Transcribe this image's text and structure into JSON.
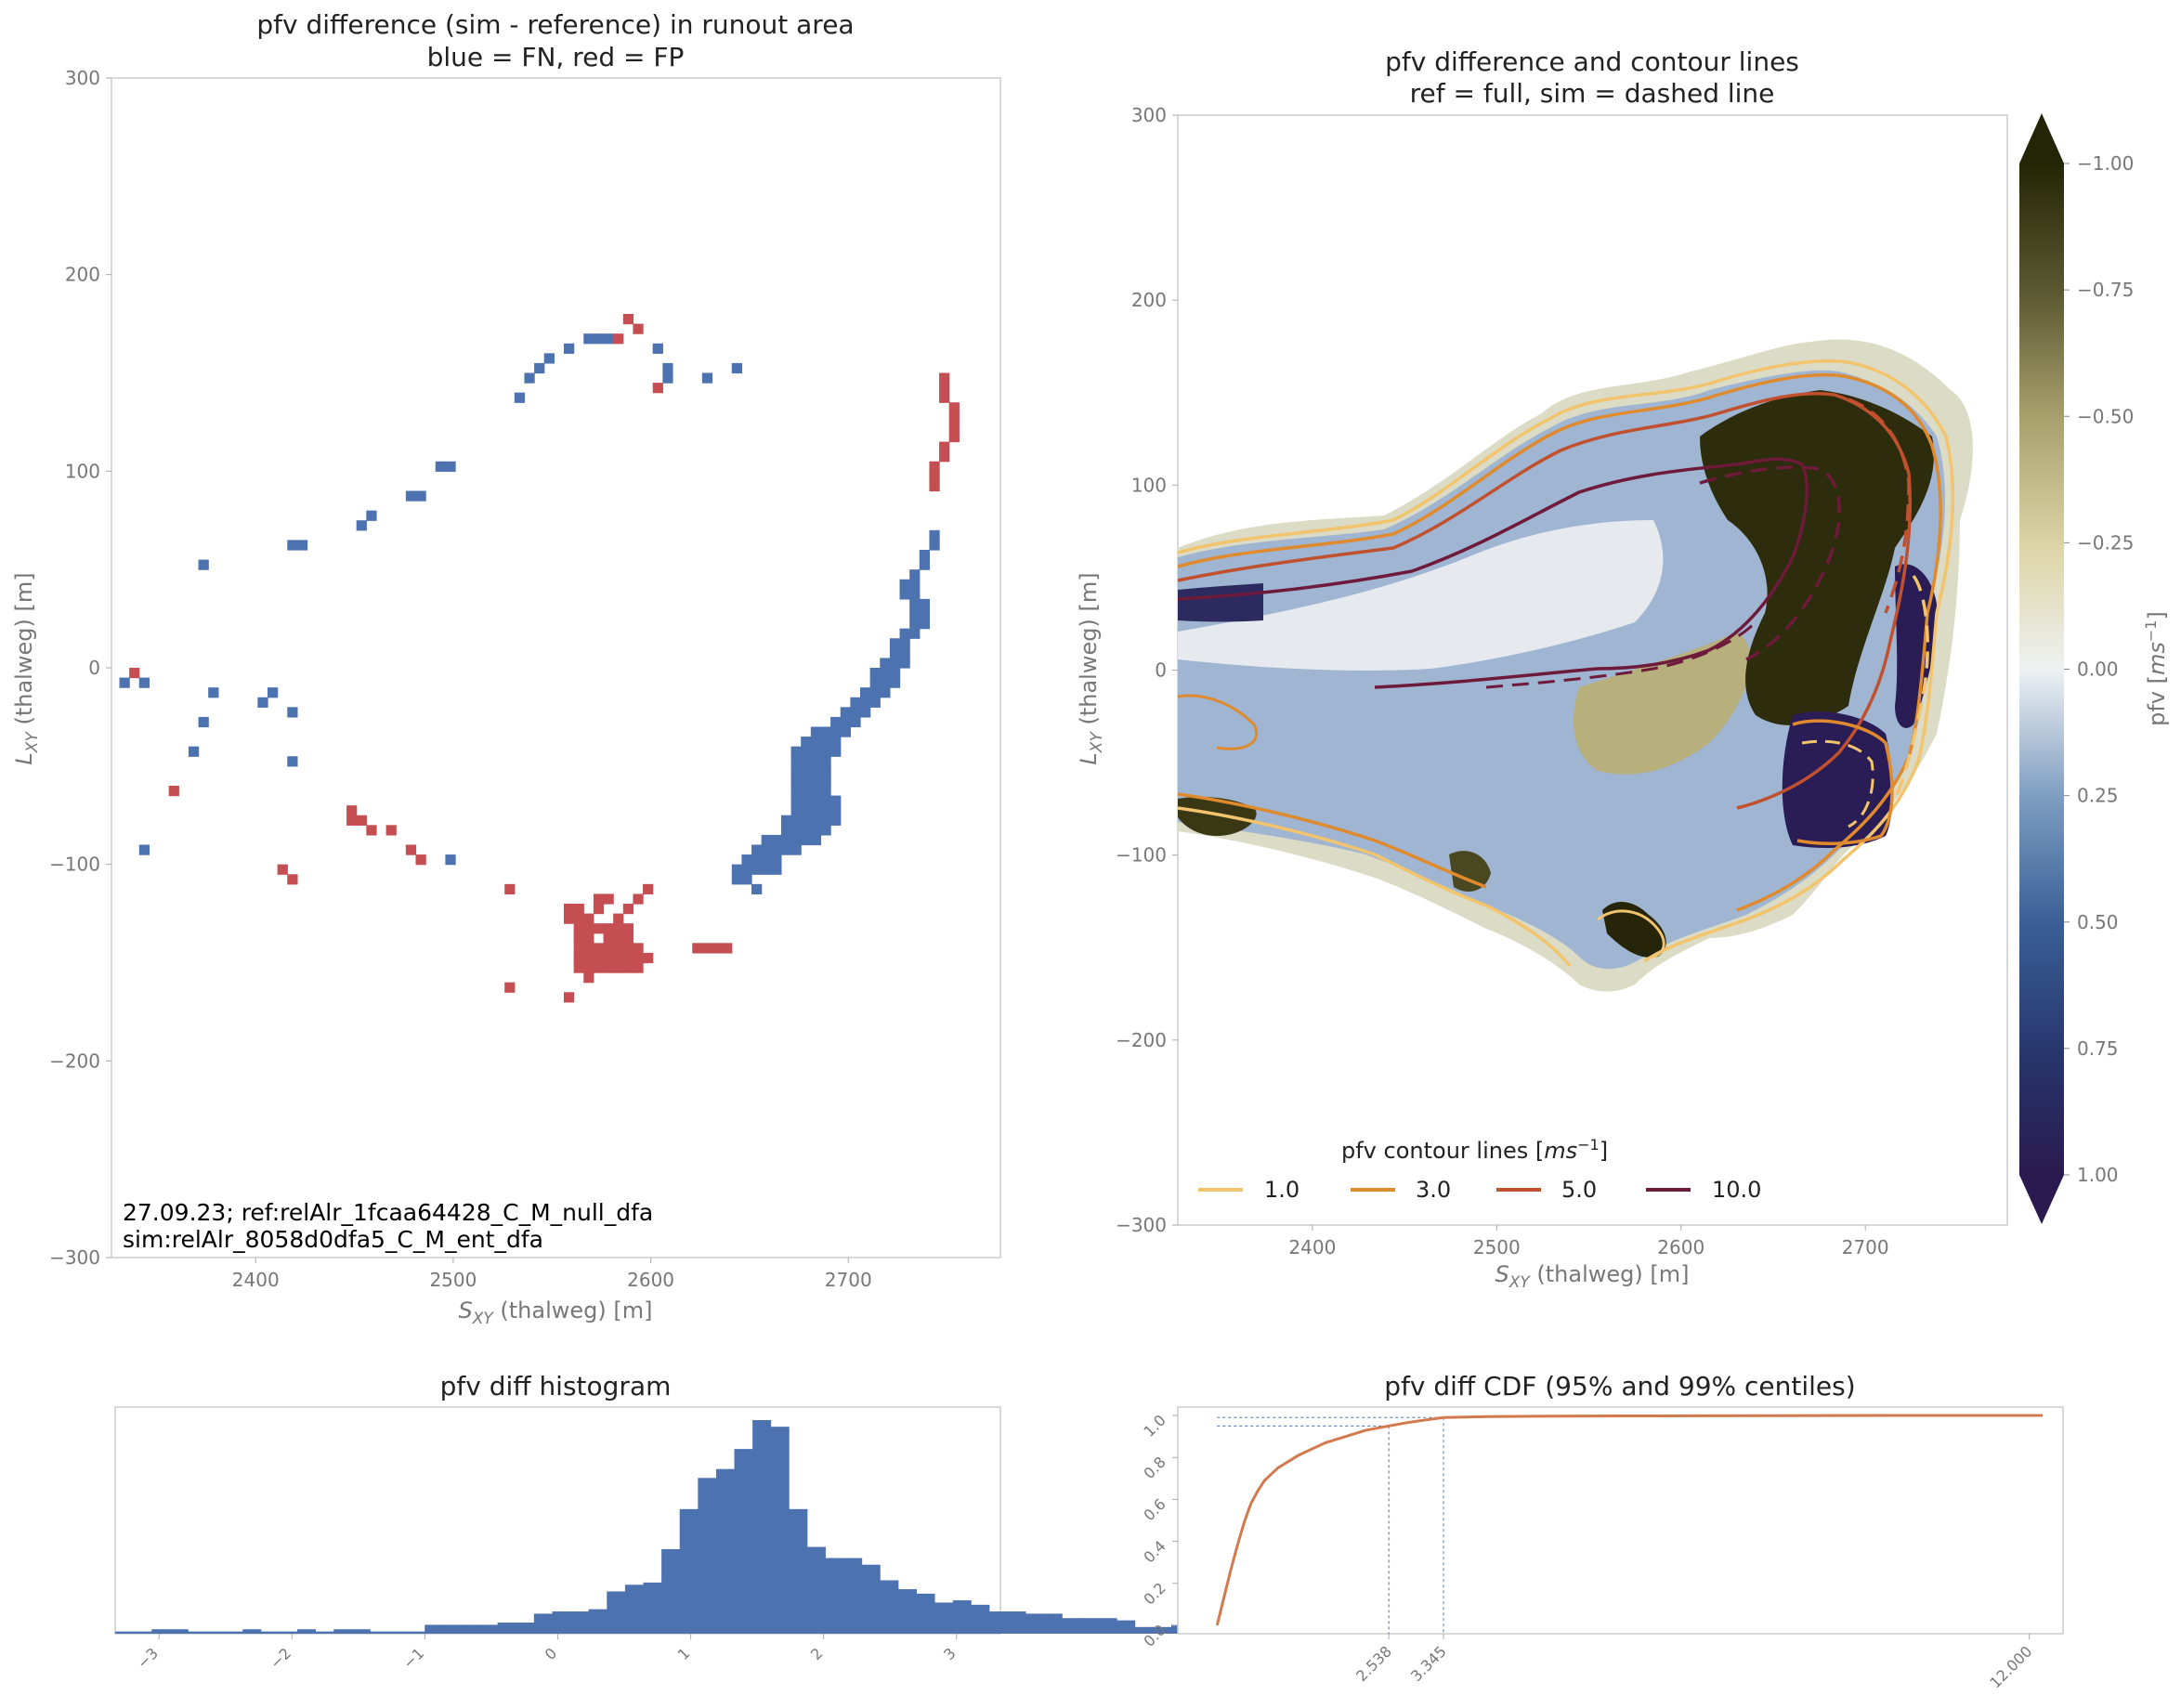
{
  "panels": {
    "diff_map": {
      "title_line1": "pfv difference (sim - reference) in runout area",
      "title_line2": "blue = FN, red = FP",
      "xlabel_var": "S",
      "xlabel_sub": "XY",
      "xlabel_rest": " (thalweg) [m]",
      "ylabel_var": "L",
      "ylabel_sub": "XY",
      "ylabel_rest": " (thalweg) [m]",
      "annotation_line1": "27.09.23; ref:relAlr_1fcaa64428_C_M_null_dfa",
      "annotation_line2": "sim:relAlr_8058d0dfa5_C_M_ent_dfa",
      "xticks": [
        "2400",
        "2500",
        "2600",
        "2700"
      ],
      "yticks": [
        "300",
        "200",
        "100",
        "0",
        "−100",
        "−200",
        "−300"
      ]
    },
    "contour_map": {
      "title_line1": "pfv difference and contour lines",
      "title_line2": "ref = full, sim = dashed line",
      "xlabel_var": "S",
      "xlabel_sub": "XY",
      "xlabel_rest": " (thalweg) [m]",
      "ylabel_var": "L",
      "ylabel_sub": "XY",
      "ylabel_rest": " (thalweg) [m]",
      "xticks": [
        "2400",
        "2500",
        "2600",
        "2700"
      ],
      "yticks": [
        "300",
        "200",
        "100",
        "0",
        "−100",
        "−200",
        "−300"
      ],
      "legend_title_prefix": "pfv contour lines [",
      "legend_title_unit": "ms",
      "legend_title_exp": "−1",
      "legend_title_suffix": "]",
      "legend": [
        {
          "label": "1.0",
          "color": "#f2c46d"
        },
        {
          "label": "3.0",
          "color": "#e08a2e"
        },
        {
          "label": "5.0",
          "color": "#c1502f"
        },
        {
          "label": "10.0",
          "color": "#6e1a3a"
        }
      ],
      "colorbar_label_prefix": "pfv [",
      "colorbar_label_unit": "ms",
      "colorbar_label_exp": "−1",
      "colorbar_label_suffix": "]",
      "colorbar_ticks": [
        "1.00",
        "0.75",
        "0.50",
        "0.25",
        "0.00",
        "−0.25",
        "−0.50",
        "−0.75",
        "−1.00"
      ]
    },
    "histogram": {
      "title": "pfv diff histogram",
      "xticks": [
        "−3",
        "−2",
        "−1",
        "0",
        "1",
        "2",
        "3"
      ]
    },
    "cdf": {
      "title": "pfv diff CDF (95% and 99% centiles)",
      "yticks": [
        "0.0",
        "0.2",
        "0.4",
        "0.6",
        "0.8",
        "1.0"
      ],
      "xticks": [
        "2.538",
        "3.345",
        "12.000"
      ]
    }
  },
  "chart_data": [
    {
      "type": "heatmap",
      "name": "diff_map",
      "title": "pfv difference (sim - reference) in runout area\nblue = FN, red = FP",
      "xlabel": "S_XY (thalweg) [m]",
      "ylabel": "L_XY (thalweg) [m]",
      "xlim": [
        2327,
        2777
      ],
      "ylim": [
        -300,
        300
      ],
      "cell_size_m": 5,
      "colors": {
        "FN": "#4c72b0",
        "FP": "#c44e52"
      },
      "fn_cells": [
        [
          2566,
          165
        ],
        [
          2571,
          165
        ],
        [
          2576,
          165
        ],
        [
          2556,
          160
        ],
        [
          2546,
          155
        ],
        [
          2541,
          150
        ],
        [
          2536,
          145
        ],
        [
          2531,
          135
        ],
        [
          2601,
          160
        ],
        [
          2606,
          150
        ],
        [
          2606,
          145
        ],
        [
          2626,
          145
        ],
        [
          2641,
          150
        ],
        [
          2496,
          100
        ],
        [
          2491,
          100
        ],
        [
          2481,
          85
        ],
        [
          2476,
          85
        ],
        [
          2456,
          75
        ],
        [
          2451,
          70
        ],
        [
          2421,
          60
        ],
        [
          2416,
          60
        ],
        [
          2371,
          50
        ],
        [
          2331,
          -10
        ],
        [
          2341,
          -10
        ],
        [
          2376,
          -15
        ],
        [
          2406,
          -15
        ],
        [
          2401,
          -20
        ],
        [
          2416,
          -25
        ],
        [
          2371,
          -30
        ],
        [
          2366,
          -45
        ],
        [
          2416,
          -50
        ],
        [
          2341,
          -95
        ],
        [
          2496,
          -100
        ],
        [
          2651,
          -115
        ],
        [
          2661,
          -105
        ],
        [
          2741,
          65
        ],
        [
          2741,
          60
        ],
        [
          2736,
          55
        ],
        [
          2736,
          50
        ],
        [
          2731,
          45
        ],
        [
          2726,
          40
        ],
        [
          2731,
          40
        ],
        [
          2726,
          35
        ],
        [
          2731,
          35
        ],
        [
          2731,
          30
        ],
        [
          2736,
          30
        ],
        [
          2731,
          25
        ],
        [
          2736,
          25
        ],
        [
          2731,
          20
        ],
        [
          2736,
          20
        ],
        [
          2731,
          15
        ],
        [
          2726,
          15
        ],
        [
          2726,
          10
        ],
        [
          2721,
          10
        ],
        [
          2726,
          5
        ],
        [
          2721,
          5
        ],
        [
          2726,
          0
        ],
        [
          2721,
          0
        ],
        [
          2716,
          0
        ],
        [
          2721,
          -5
        ],
        [
          2716,
          -5
        ],
        [
          2711,
          -5
        ],
        [
          2721,
          -10
        ],
        [
          2716,
          -10
        ],
        [
          2711,
          -10
        ],
        [
          2706,
          -15
        ],
        [
          2711,
          -15
        ],
        [
          2716,
          -15
        ],
        [
          2701,
          -20
        ],
        [
          2706,
          -20
        ],
        [
          2711,
          -20
        ],
        [
          2696,
          -25
        ],
        [
          2701,
          -25
        ],
        [
          2706,
          -25
        ],
        [
          2691,
          -30
        ],
        [
          2696,
          -30
        ],
        [
          2701,
          -30
        ],
        [
          2681,
          -35
        ],
        [
          2686,
          -35
        ],
        [
          2691,
          -35
        ],
        [
          2696,
          -35
        ],
        [
          2676,
          -40
        ],
        [
          2681,
          -40
        ],
        [
          2686,
          -40
        ],
        [
          2691,
          -40
        ],
        [
          2671,
          -45
        ],
        [
          2676,
          -45
        ],
        [
          2681,
          -45
        ],
        [
          2686,
          -45
        ],
        [
          2691,
          -45
        ],
        [
          2671,
          -50
        ],
        [
          2676,
          -50
        ],
        [
          2681,
          -50
        ],
        [
          2686,
          -50
        ],
        [
          2671,
          -55
        ],
        [
          2676,
          -55
        ],
        [
          2681,
          -55
        ],
        [
          2686,
          -55
        ],
        [
          2671,
          -60
        ],
        [
          2676,
          -60
        ],
        [
          2681,
          -60
        ],
        [
          2686,
          -60
        ],
        [
          2671,
          -65
        ],
        [
          2676,
          -65
        ],
        [
          2681,
          -65
        ],
        [
          2686,
          -65
        ],
        [
          2671,
          -70
        ],
        [
          2676,
          -70
        ],
        [
          2681,
          -70
        ],
        [
          2686,
          -70
        ],
        [
          2691,
          -70
        ],
        [
          2671,
          -75
        ],
        [
          2676,
          -75
        ],
        [
          2681,
          -75
        ],
        [
          2686,
          -75
        ],
        [
          2691,
          -75
        ],
        [
          2666,
          -80
        ],
        [
          2671,
          -80
        ],
        [
          2676,
          -80
        ],
        [
          2681,
          -80
        ],
        [
          2686,
          -80
        ],
        [
          2691,
          -80
        ],
        [
          2666,
          -85
        ],
        [
          2671,
          -85
        ],
        [
          2676,
          -85
        ],
        [
          2681,
          -85
        ],
        [
          2686,
          -85
        ],
        [
          2656,
          -90
        ],
        [
          2661,
          -90
        ],
        [
          2666,
          -90
        ],
        [
          2671,
          -90
        ],
        [
          2676,
          -90
        ],
        [
          2681,
          -90
        ],
        [
          2651,
          -95
        ],
        [
          2656,
          -95
        ],
        [
          2661,
          -95
        ],
        [
          2666,
          -95
        ],
        [
          2671,
          -95
        ],
        [
          2646,
          -100
        ],
        [
          2651,
          -100
        ],
        [
          2656,
          -100
        ],
        [
          2661,
          -100
        ],
        [
          2641,
          -105
        ],
        [
          2646,
          -105
        ],
        [
          2651,
          -105
        ],
        [
          2656,
          -105
        ],
        [
          2646,
          -110
        ],
        [
          2641,
          -110
        ]
      ],
      "fp_cells": [
        [
          2581,
          165
        ],
        [
          2586,
          175
        ],
        [
          2591,
          170
        ],
        [
          2601,
          140
        ],
        [
          2746,
          145
        ],
        [
          2746,
          140
        ],
        [
          2746,
          135
        ],
        [
          2751,
          130
        ],
        [
          2751,
          125
        ],
        [
          2751,
          120
        ],
        [
          2751,
          115
        ],
        [
          2746,
          110
        ],
        [
          2746,
          105
        ],
        [
          2741,
          100
        ],
        [
          2741,
          95
        ],
        [
          2741,
          90
        ],
        [
          2336,
          -5
        ],
        [
          2356,
          -65
        ],
        [
          2446,
          -75
        ],
        [
          2446,
          -80
        ],
        [
          2451,
          -80
        ],
        [
          2456,
          -85
        ],
        [
          2466,
          -85
        ],
        [
          2476,
          -95
        ],
        [
          2481,
          -100
        ],
        [
          2411,
          -105
        ],
        [
          2416,
          -110
        ],
        [
          2526,
          -115
        ],
        [
          2526,
          -165
        ],
        [
          2556,
          -170
        ],
        [
          2621,
          -145
        ],
        [
          2626,
          -145
        ],
        [
          2631,
          -145
        ],
        [
          2636,
          -145
        ],
        [
          2556,
          -125
        ],
        [
          2561,
          -125
        ],
        [
          2556,
          -130
        ],
        [
          2561,
          -130
        ],
        [
          2566,
          -130
        ],
        [
          2561,
          -135
        ],
        [
          2566,
          -135
        ],
        [
          2571,
          -135
        ],
        [
          2576,
          -135
        ],
        [
          2581,
          -135
        ],
        [
          2586,
          -135
        ],
        [
          2561,
          -140
        ],
        [
          2566,
          -140
        ],
        [
          2576,
          -140
        ],
        [
          2581,
          -140
        ],
        [
          2586,
          -140
        ],
        [
          2561,
          -145
        ],
        [
          2566,
          -145
        ],
        [
          2571,
          -145
        ],
        [
          2576,
          -145
        ],
        [
          2581,
          -145
        ],
        [
          2586,
          -145
        ],
        [
          2591,
          -145
        ],
        [
          2561,
          -150
        ],
        [
          2566,
          -150
        ],
        [
          2571,
          -150
        ],
        [
          2576,
          -150
        ],
        [
          2581,
          -150
        ],
        [
          2586,
          -150
        ],
        [
          2591,
          -150
        ],
        [
          2596,
          -150
        ],
        [
          2561,
          -155
        ],
        [
          2566,
          -155
        ],
        [
          2571,
          -155
        ],
        [
          2576,
          -155
        ],
        [
          2581,
          -155
        ],
        [
          2586,
          -155
        ],
        [
          2591,
          -155
        ],
        [
          2566,
          -160
        ],
        [
          2571,
          -120
        ],
        [
          2576,
          -120
        ],
        [
          2571,
          -125
        ],
        [
          2581,
          -130
        ],
        [
          2586,
          -125
        ],
        [
          2591,
          -120
        ],
        [
          2596,
          -115
        ]
      ]
    },
    {
      "type": "heatmap",
      "name": "contour_map",
      "title": "pfv difference and contour lines\nref = full, sim = dashed line",
      "xlabel": "S_XY (thalweg) [m]",
      "ylabel": "L_XY (thalweg) [m]",
      "xlim": [
        2327,
        2777
      ],
      "ylim": [
        -300,
        300
      ],
      "colorbar": {
        "label": "pfv [ms^-1]",
        "range": [
          -1.0,
          1.0
        ],
        "extend": "both",
        "ticks": [
          -1.0,
          -0.75,
          -0.5,
          -0.25,
          0.0,
          0.25,
          0.5,
          0.75,
          1.0
        ]
      },
      "contour_levels": [
        1.0,
        3.0,
        5.0,
        10.0
      ],
      "legend_placement": "bottom"
    },
    {
      "type": "bar",
      "name": "histogram",
      "title": "pfv diff histogram",
      "xlim": [
        -3.33,
        3.33
      ],
      "bin_width": 0.137,
      "bins_start": -3.33,
      "values": [
        1,
        1,
        2,
        2,
        1,
        1,
        1,
        2,
        1,
        1,
        2,
        1,
        2,
        2,
        1,
        1,
        1,
        4,
        4,
        4,
        4,
        5,
        5,
        9,
        10,
        10,
        11,
        19,
        22,
        23,
        38,
        56,
        70,
        74,
        83,
        96,
        93,
        56,
        39,
        34,
        34,
        31,
        24,
        20,
        18,
        14,
        15,
        13,
        10,
        10,
        9,
        9,
        7,
        7,
        7,
        6,
        3,
        3,
        4,
        3,
        3,
        2,
        3,
        2,
        2,
        2,
        1,
        1,
        1
      ]
    },
    {
      "type": "line",
      "name": "cdf",
      "title": "pfv diff CDF (95% and 99% centiles)",
      "ylim": [
        -0.04,
        1.04
      ],
      "xlim": [
        -0.58,
        12.5
      ],
      "x": [
        0.0,
        0.1,
        0.2,
        0.3,
        0.4,
        0.5,
        0.6,
        0.7,
        0.8,
        0.9,
        1.0,
        1.2,
        1.4,
        1.6,
        1.8,
        2.0,
        2.2,
        2.538,
        2.8,
        3.0,
        3.345,
        4.0,
        5.0,
        6.0,
        8.0,
        10.0,
        12.2
      ],
      "y": [
        0.0,
        0.13,
        0.26,
        0.38,
        0.49,
        0.58,
        0.64,
        0.69,
        0.72,
        0.75,
        0.77,
        0.81,
        0.84,
        0.87,
        0.89,
        0.91,
        0.93,
        0.95,
        0.965,
        0.975,
        0.99,
        0.995,
        0.997,
        0.998,
        0.999,
        1.0,
        1.0
      ],
      "centiles": [
        {
          "p": 0.95,
          "x": 2.538
        },
        {
          "p": 0.99,
          "x": 3.345
        }
      ],
      "xtick_values": [
        2.538,
        3.345,
        12.0
      ],
      "ytick_values": [
        0.0,
        0.2,
        0.4,
        0.6,
        0.8,
        1.0
      ],
      "line_color": "#d27a4e",
      "centile_color": "#4c72b0"
    }
  ]
}
